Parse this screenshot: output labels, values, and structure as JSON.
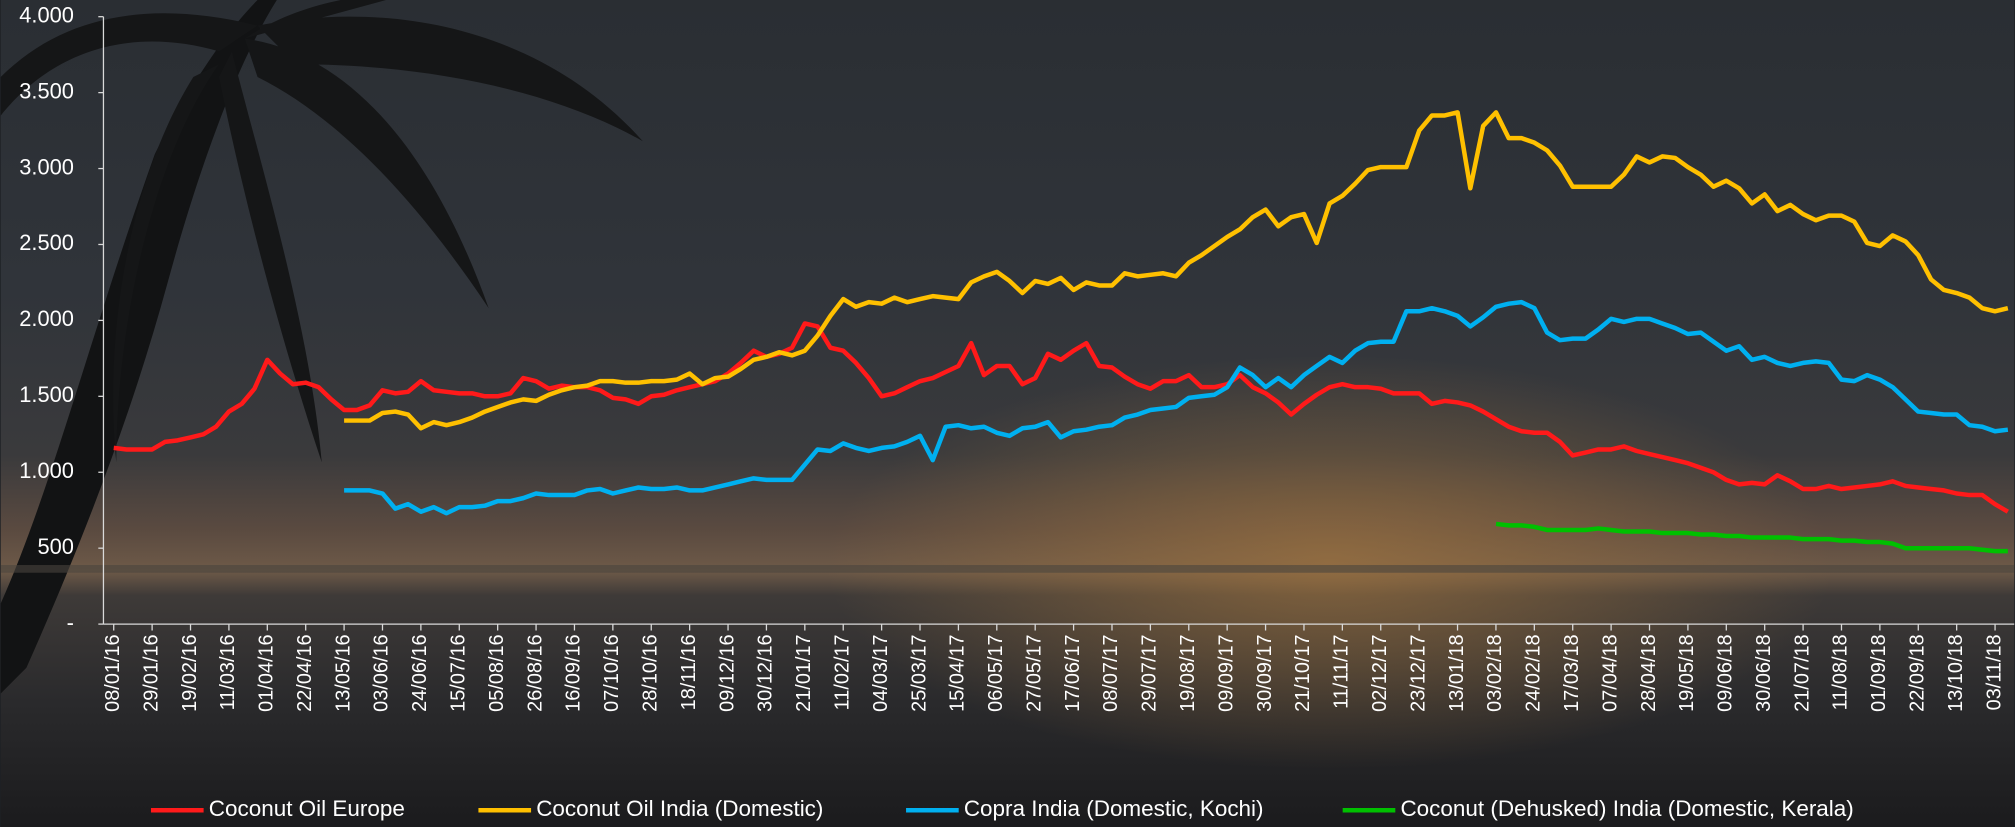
{
  "chart_data": {
    "type": "line",
    "categories": [
      "08/01/16",
      null,
      null,
      "29/01/16",
      null,
      null,
      "19/02/16",
      null,
      null,
      "11/03/16",
      null,
      null,
      "01/04/16",
      null,
      null,
      "22/04/16",
      null,
      null,
      "13/05/16",
      null,
      null,
      "03/06/16",
      null,
      null,
      "24/06/16",
      null,
      null,
      "15/07/16",
      null,
      null,
      "05/08/16",
      null,
      null,
      "26/08/16",
      null,
      null,
      "16/09/16",
      null,
      null,
      "07/10/16",
      null,
      null,
      "28/10/16",
      null,
      null,
      "18/11/16",
      null,
      null,
      "09/12/16",
      null,
      null,
      "30/12/16",
      null,
      null,
      "21/01/17",
      null,
      null,
      "11/02/17",
      null,
      null,
      "04/03/17",
      null,
      null,
      "25/03/17",
      null,
      null,
      "15/04/17",
      null,
      null,
      "06/05/17",
      null,
      null,
      "27/05/17",
      null,
      null,
      "17/06/17",
      null,
      null,
      "08/07/17",
      null,
      null,
      "29/07/17",
      null,
      null,
      "19/08/17",
      null,
      null,
      "09/09/17",
      null,
      null,
      "30/09/17",
      null,
      null,
      "21/10/17",
      null,
      null,
      "11/11/17",
      null,
      null,
      "02/12/17",
      null,
      null,
      "23/12/17",
      null,
      null,
      "13/01/18",
      null,
      null,
      "03/02/18",
      null,
      null,
      "24/02/18",
      null,
      null,
      "17/03/18",
      null,
      null,
      "07/04/18",
      null,
      null,
      "28/04/18",
      null,
      null,
      "19/05/18",
      null,
      null,
      "09/06/18",
      null,
      null,
      "30/06/18",
      null,
      null,
      "21/07/18",
      null,
      null,
      "11/08/18",
      null,
      null,
      "01/09/18",
      null,
      null,
      "22/09/18",
      null,
      null,
      "13/10/18",
      null,
      null,
      "03/11/18",
      null
    ],
    "series": [
      {
        "name": "Coconut Oil Europe",
        "color": "#ff1a1a",
        "values": [
          1160,
          1150,
          1150,
          1150,
          1200,
          1210,
          1230,
          1250,
          1300,
          1400,
          1450,
          1550,
          1740,
          1650,
          1580,
          1590,
          1560,
          1480,
          1410,
          1410,
          1440,
          1540,
          1520,
          1530,
          1600,
          1540,
          1530,
          1520,
          1520,
          1500,
          1500,
          1520,
          1620,
          1600,
          1550,
          1570,
          1560,
          1560,
          1540,
          1490,
          1480,
          1450,
          1500,
          1510,
          1540,
          1560,
          1580,
          1600,
          1650,
          1720,
          1800,
          1760,
          1780,
          1820,
          1980,
          1960,
          1820,
          1800,
          1720,
          1620,
          1500,
          1520,
          1560,
          1600,
          1620,
          1660,
          1700,
          1850,
          1640,
          1700,
          1700,
          1580,
          1620,
          1780,
          1740,
          1800,
          1850,
          1700,
          1690,
          1630,
          1580,
          1550,
          1600,
          1600,
          1640,
          1560,
          1560,
          1580,
          1640,
          1560,
          1520,
          1460,
          1380,
          1450,
          1510,
          1560,
          1580,
          1560,
          1560,
          1550,
          1520,
          1520,
          1520,
          1450,
          1470,
          1460,
          1440,
          1400,
          1350,
          1300,
          1270,
          1260,
          1260,
          1200,
          1110,
          1130,
          1150,
          1150,
          1170,
          1140,
          1120,
          1100,
          1080,
          1060,
          1030,
          1000,
          950,
          920,
          930,
          920,
          980,
          940,
          890,
          890,
          910,
          890,
          900,
          910,
          920,
          940,
          910,
          900,
          890,
          880,
          860,
          850,
          850,
          790,
          740
        ]
      },
      {
        "name": "Coconut Oil India (Domestic)",
        "color": "#ffc000",
        "values": [
          null,
          null,
          null,
          null,
          null,
          null,
          null,
          null,
          null,
          null,
          null,
          null,
          null,
          null,
          null,
          null,
          null,
          null,
          1340,
          1340,
          1340,
          1390,
          1400,
          1380,
          1290,
          1330,
          1310,
          1330,
          1360,
          1400,
          1430,
          1460,
          1480,
          1470,
          1510,
          1540,
          1560,
          1570,
          1600,
          1600,
          1590,
          1590,
          1600,
          1600,
          1610,
          1650,
          1580,
          1620,
          1630,
          1680,
          1740,
          1760,
          1790,
          1770,
          1800,
          1900,
          2030,
          2140,
          2090,
          2120,
          2110,
          2150,
          2120,
          2140,
          2160,
          2150,
          2140,
          2250,
          2290,
          2320,
          2260,
          2180,
          2260,
          2240,
          2280,
          2200,
          2250,
          2230,
          2230,
          2310,
          2290,
          2300,
          2310,
          2290,
          2380,
          2430,
          2490,
          2550,
          2600,
          2680,
          2730,
          2620,
          2680,
          2700,
          2510,
          2770,
          2820,
          2900,
          2990,
          3010,
          3010,
          3010,
          3250,
          3350,
          3350,
          3370,
          2870,
          3280,
          3370,
          3200,
          3200,
          3170,
          3120,
          3020,
          2880,
          2880,
          2880,
          2880,
          2960,
          3080,
          3040,
          3080,
          3070,
          3010,
          2960,
          2880,
          2920,
          2870,
          2770,
          2830,
          2720,
          2760,
          2700,
          2660,
          2690,
          2690,
          2650,
          2510,
          2490,
          2560,
          2520,
          2430,
          2270,
          2200,
          2180,
          2150,
          2080,
          2060,
          2080
        ]
      },
      {
        "name": "Copra India (Domestic, Kochi)",
        "color": "#00b0f0",
        "values": [
          null,
          null,
          null,
          null,
          null,
          null,
          null,
          null,
          null,
          null,
          null,
          null,
          null,
          null,
          null,
          null,
          null,
          null,
          880,
          880,
          880,
          860,
          760,
          790,
          740,
          770,
          730,
          770,
          770,
          780,
          810,
          810,
          830,
          860,
          850,
          850,
          850,
          880,
          890,
          860,
          880,
          900,
          890,
          890,
          900,
          880,
          880,
          900,
          920,
          940,
          960,
          950,
          950,
          950,
          1050,
          1150,
          1140,
          1190,
          1160,
          1140,
          1160,
          1170,
          1200,
          1240,
          1080,
          1300,
          1310,
          1290,
          1300,
          1260,
          1240,
          1290,
          1300,
          1330,
          1230,
          1270,
          1280,
          1300,
          1310,
          1360,
          1380,
          1410,
          1420,
          1430,
          1490,
          1500,
          1510,
          1560,
          1690,
          1640,
          1560,
          1620,
          1560,
          1640,
          1700,
          1760,
          1720,
          1800,
          1850,
          1860,
          1860,
          2060,
          2060,
          2080,
          2060,
          2030,
          1960,
          2020,
          2090,
          2110,
          2120,
          2080,
          1920,
          1870,
          1880,
          1880,
          1940,
          2010,
          1990,
          2010,
          2010,
          1980,
          1950,
          1910,
          1920,
          1860,
          1800,
          1830,
          1740,
          1760,
          1720,
          1700,
          1720,
          1730,
          1720,
          1610,
          1600,
          1640,
          1610,
          1560,
          1480,
          1400,
          1390,
          1380,
          1380,
          1310,
          1300,
          1270,
          1280
        ]
      },
      {
        "name": "Coconut (Dehusked) India (Domestic, Kerala)",
        "color": "#00c000",
        "values": [
          null,
          null,
          null,
          null,
          null,
          null,
          null,
          null,
          null,
          null,
          null,
          null,
          null,
          null,
          null,
          null,
          null,
          null,
          null,
          null,
          null,
          null,
          null,
          null,
          null,
          null,
          null,
          null,
          null,
          null,
          null,
          null,
          null,
          null,
          null,
          null,
          null,
          null,
          null,
          null,
          null,
          null,
          null,
          null,
          null,
          null,
          null,
          null,
          null,
          null,
          null,
          null,
          null,
          null,
          null,
          null,
          null,
          null,
          null,
          null,
          null,
          null,
          null,
          null,
          null,
          null,
          null,
          null,
          null,
          null,
          null,
          null,
          null,
          null,
          null,
          null,
          null,
          null,
          null,
          null,
          null,
          null,
          null,
          null,
          null,
          null,
          null,
          null,
          null,
          null,
          null,
          null,
          null,
          null,
          null,
          null,
          null,
          null,
          null,
          null,
          null,
          null,
          null,
          null,
          null,
          null,
          null,
          null,
          660,
          650,
          650,
          640,
          620,
          620,
          620,
          620,
          630,
          620,
          610,
          610,
          610,
          600,
          600,
          600,
          590,
          590,
          580,
          580,
          570,
          570,
          570,
          570,
          560,
          560,
          560,
          550,
          550,
          540,
          540,
          530,
          500,
          500,
          500,
          500,
          500,
          500,
          490,
          480,
          480
        ]
      }
    ],
    "ylim": [
      0,
      4000
    ],
    "yticks": [
      {
        "value": 0,
        "label": "-"
      },
      500,
      {
        "value": 1000,
        "label": "1.000"
      },
      {
        "value": 1500,
        "label": "1.500"
      },
      {
        "value": 2000,
        "label": "2.000"
      },
      {
        "value": 2500,
        "label": "2.500"
      },
      {
        "value": 3000,
        "label": "3.000"
      },
      {
        "value": 3500,
        "label": "3.500"
      },
      {
        "value": 4000,
        "label": "4.000"
      }
    ],
    "legend": "bottom"
  }
}
